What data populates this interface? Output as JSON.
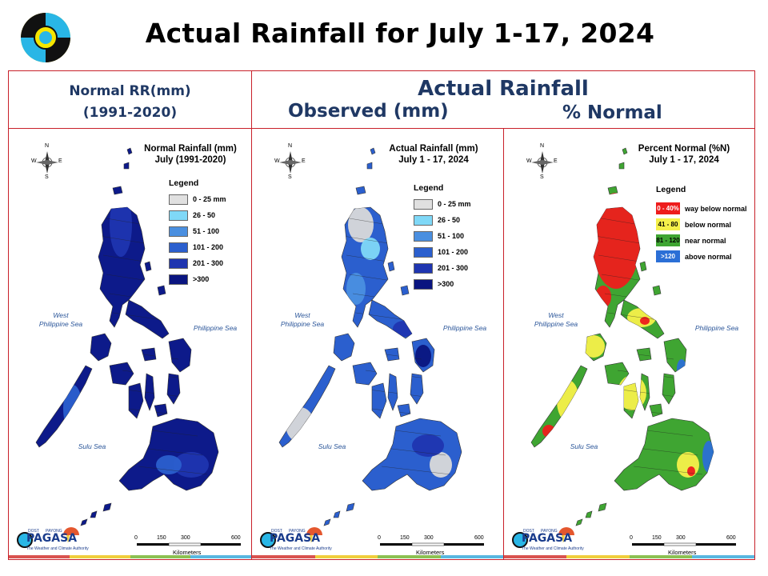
{
  "slide": {
    "title": "Actual Rainfall for July 1-17, 2024"
  },
  "headers": {
    "normal_line1": "Normal RR(mm)",
    "normal_line2": "(1991-2020)",
    "actual": "Actual Rainfall",
    "observed": "Observed (mm)",
    "percent": "% Normal"
  },
  "maps": [
    {
      "id": "normal",
      "title_line1": "Normal Rainfall (mm)",
      "title_line2": "July (1991-2020)",
      "legend_title": "Legend",
      "legend": [
        {
          "label": "0 - 25 mm",
          "color": "#e0e0e0"
        },
        {
          "label": "26 - 50",
          "color": "#7fd8f7"
        },
        {
          "label": "51 - 100",
          "color": "#4a8fe0"
        },
        {
          "label": "101 - 200",
          "color": "#2b5fce"
        },
        {
          "label": "201 - 300",
          "color": "#1f35b0"
        },
        {
          "label": ">300",
          "color": "#0a1580"
        }
      ]
    },
    {
      "id": "actual",
      "title_line1": "Actual Rainfall (mm)",
      "title_line2": "July 1 - 17, 2024",
      "legend_title": "Legend",
      "legend": [
        {
          "label": "0 - 25 mm",
          "color": "#e0e0e0"
        },
        {
          "label": "26 - 50",
          "color": "#7fd8f7"
        },
        {
          "label": "51 - 100",
          "color": "#4a8fe0"
        },
        {
          "label": "101 - 200",
          "color": "#2b5fce"
        },
        {
          "label": "201 - 300",
          "color": "#1f35b0"
        },
        {
          "label": ">300",
          "color": "#0a1580"
        }
      ]
    },
    {
      "id": "percent",
      "title_line1": "Percent Normal (%N)",
      "title_line2": "July 1 - 17, 2024",
      "legend_title": "Legend",
      "legend": [
        {
          "range": "0 - 40%",
          "label": "way below normal",
          "color": "#ee1c1c"
        },
        {
          "range": "41 - 80",
          "label": "below normal",
          "color": "#f5f04a"
        },
        {
          "range": "81 - 120",
          "label": "near normal",
          "color": "#3fa532"
        },
        {
          "range": ">120",
          "label": "above normal",
          "color": "#2b6fd6"
        }
      ]
    }
  ],
  "labels": {
    "west_sea_1": "West",
    "west_sea_2": "Philippine Sea",
    "philippine_sea": "Philippine Sea",
    "sulu_sea": "Sulu Sea",
    "compass_n": "N",
    "compass_s": "S",
    "compass_e": "E",
    "compass_w": "W",
    "scale_0": "0",
    "scale_150": "150",
    "scale_300": "300",
    "scale_600": "600",
    "kilometers": "Kilometers",
    "pagasa": "PAGASA",
    "pagasa_top": "DOST",
    "payong": "PAYONG",
    "pagasa_tagline": "The Weather and Climate Authority"
  },
  "colors": {
    "frame": "#c8202a",
    "header_text": "#1f3864",
    "sea_label": "#2a5599"
  },
  "strip_colors": [
    "#d9534f",
    "#f0ce3c",
    "#8cc152",
    "#59b7e0"
  ]
}
